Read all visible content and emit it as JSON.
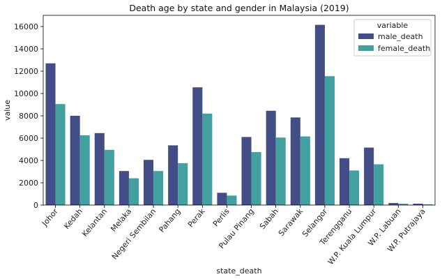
{
  "chart_data": {
    "type": "bar",
    "title": "Death age by state and gender in Malaysia (2019)",
    "xlabel": "state_death",
    "ylabel": "value",
    "ylim": [
      0,
      17000
    ],
    "yticks": [
      0,
      2000,
      4000,
      6000,
      8000,
      10000,
      12000,
      14000,
      16000
    ],
    "categories": [
      "Johor",
      "Kedah",
      "Kelantan",
      "Melaka",
      "Negeri Sembilan",
      "Pahang",
      "Perak",
      "Perlis",
      "Pulau Pinang",
      "Sabah",
      "Sarawak",
      "Selangor",
      "Terengganu",
      "W.P. Kuala Lumpur",
      "W.P. Labuan",
      "W.P. Putrajaya"
    ],
    "series": [
      {
        "name": "male_death",
        "color": "#434e87",
        "values": [
          12700,
          8000,
          6450,
          3050,
          4050,
          5350,
          10550,
          1100,
          6100,
          8450,
          7850,
          16150,
          4200,
          5150,
          180,
          120
        ]
      },
      {
        "name": "female_death",
        "color": "#43a0a0",
        "values": [
          9050,
          6250,
          4950,
          2400,
          3050,
          3750,
          8200,
          850,
          4750,
          6050,
          6150,
          11550,
          3100,
          3650,
          120,
          70
        ]
      }
    ],
    "legend": {
      "title": "variable",
      "position": "top-right"
    },
    "grid": false
  }
}
